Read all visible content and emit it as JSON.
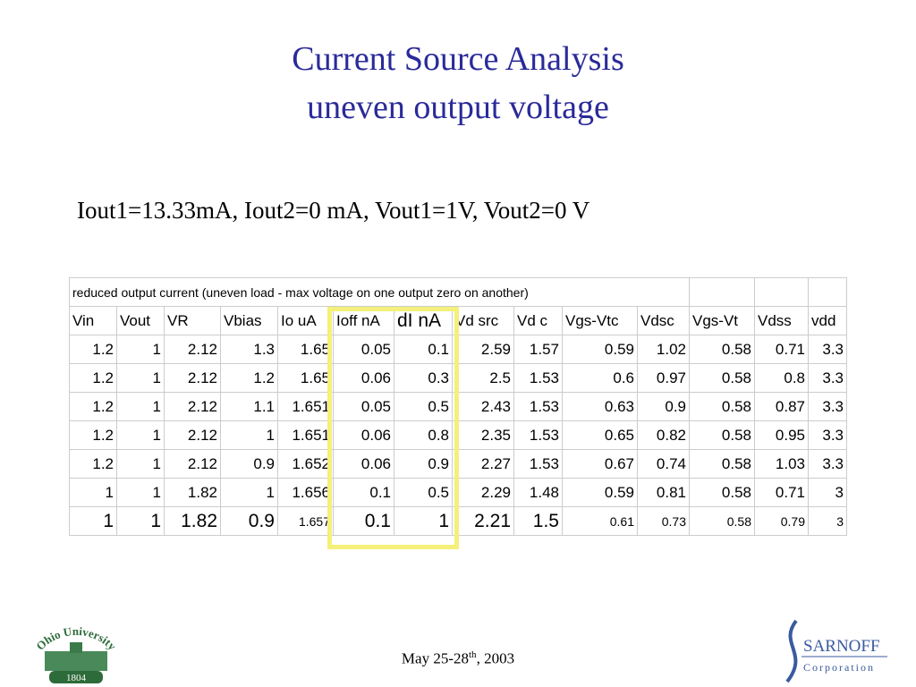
{
  "title": [
    "Current Source Analysis",
    "uneven output voltage"
  ],
  "subtitle": "Iout1=13.33mA, Iout2=0 mA, Vout1=1V, Vout2=0 V",
  "table": {
    "caption": "reduced output current (uneven load - max voltage on one output zero on another)",
    "header": [
      "Vin",
      "Vout",
      "VR",
      "Vbias",
      "Io uA",
      "Ioff nA",
      "dI nA",
      "Vd src",
      "Vd c",
      "Vgs-Vtc",
      "Vdsc",
      "Vgs-Vt",
      "Vdss",
      "vdd"
    ],
    "rows": [
      [
        "1.2",
        "1",
        "2.12",
        "1.3",
        "1.65",
        "0.05",
        "0.1",
        "2.59",
        "1.57",
        "0.59",
        "1.02",
        "0.58",
        "0.71",
        "3.3"
      ],
      [
        "1.2",
        "1",
        "2.12",
        "1.2",
        "1.65",
        "0.06",
        "0.3",
        "2.5",
        "1.53",
        "0.6",
        "0.97",
        "0.58",
        "0.8",
        "3.3"
      ],
      [
        "1.2",
        "1",
        "2.12",
        "1.1",
        "1.651",
        "0.05",
        "0.5",
        "2.43",
        "1.53",
        "0.63",
        "0.9",
        "0.58",
        "0.87",
        "3.3"
      ],
      [
        "1.2",
        "1",
        "2.12",
        "1",
        "1.651",
        "0.06",
        "0.8",
        "2.35",
        "1.53",
        "0.65",
        "0.82",
        "0.58",
        "0.95",
        "3.3"
      ],
      [
        "1.2",
        "1",
        "2.12",
        "0.9",
        "1.652",
        "0.06",
        "0.9",
        "2.27",
        "1.53",
        "0.67",
        "0.74",
        "0.58",
        "1.03",
        "3.3"
      ],
      [
        "1",
        "1",
        "1.82",
        "1",
        "1.656",
        "0.1",
        "0.5",
        "2.29",
        "1.48",
        "0.59",
        "0.81",
        "0.58",
        "0.71",
        "3"
      ],
      [
        "1",
        "1",
        "1.82",
        "0.9",
        "1.657",
        "0.1",
        "1",
        "2.21",
        "1.5",
        "0.61",
        "0.73",
        "0.58",
        "0.79",
        "3"
      ]
    ]
  },
  "footer": {
    "date": [
      "May 25-28",
      "th",
      ", 2003"
    ]
  },
  "logos": {
    "ohio": [
      "Ohio University",
      "1804"
    ],
    "sarnoff": [
      "SARNOFF",
      "Corporation"
    ]
  }
}
